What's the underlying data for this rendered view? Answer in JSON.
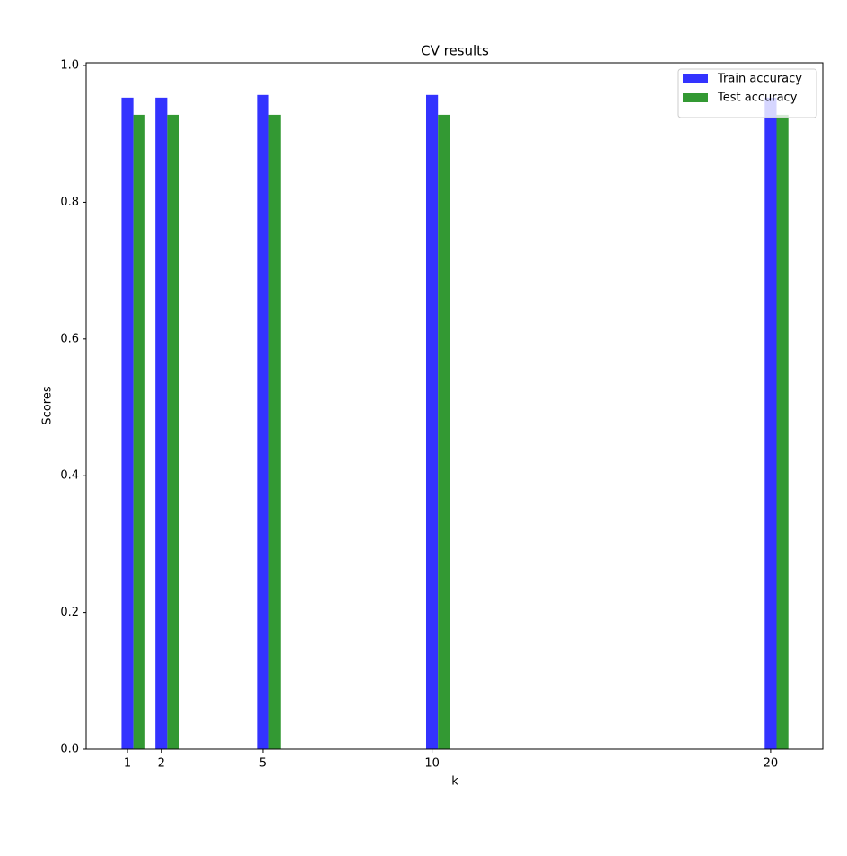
{
  "chart_data": {
    "type": "bar",
    "title": "CV results",
    "xlabel": "k",
    "ylabel": "Scores",
    "x": [
      1,
      2,
      5,
      10,
      20
    ],
    "series": [
      {
        "name": "Train accuracy",
        "color": "#3333ff",
        "values": [
          0.953,
          0.953,
          0.957,
          0.957,
          0.953
        ]
      },
      {
        "name": "Test accuracy",
        "color": "#339933",
        "values": [
          0.928,
          0.928,
          0.928,
          0.928,
          0.928
        ]
      }
    ],
    "xlim": [
      -0.22,
      21.54
    ],
    "xticks": [
      1,
      2,
      5,
      10,
      20
    ],
    "ylim": [
      0,
      1.004
    ],
    "yticks": [
      {
        "value": 0,
        "label": "0.0"
      },
      0.2,
      0.4,
      0.6,
      0.8,
      {
        "value": 1,
        "label": "1.0"
      }
    ],
    "legend": "upper right",
    "grid": false
  }
}
